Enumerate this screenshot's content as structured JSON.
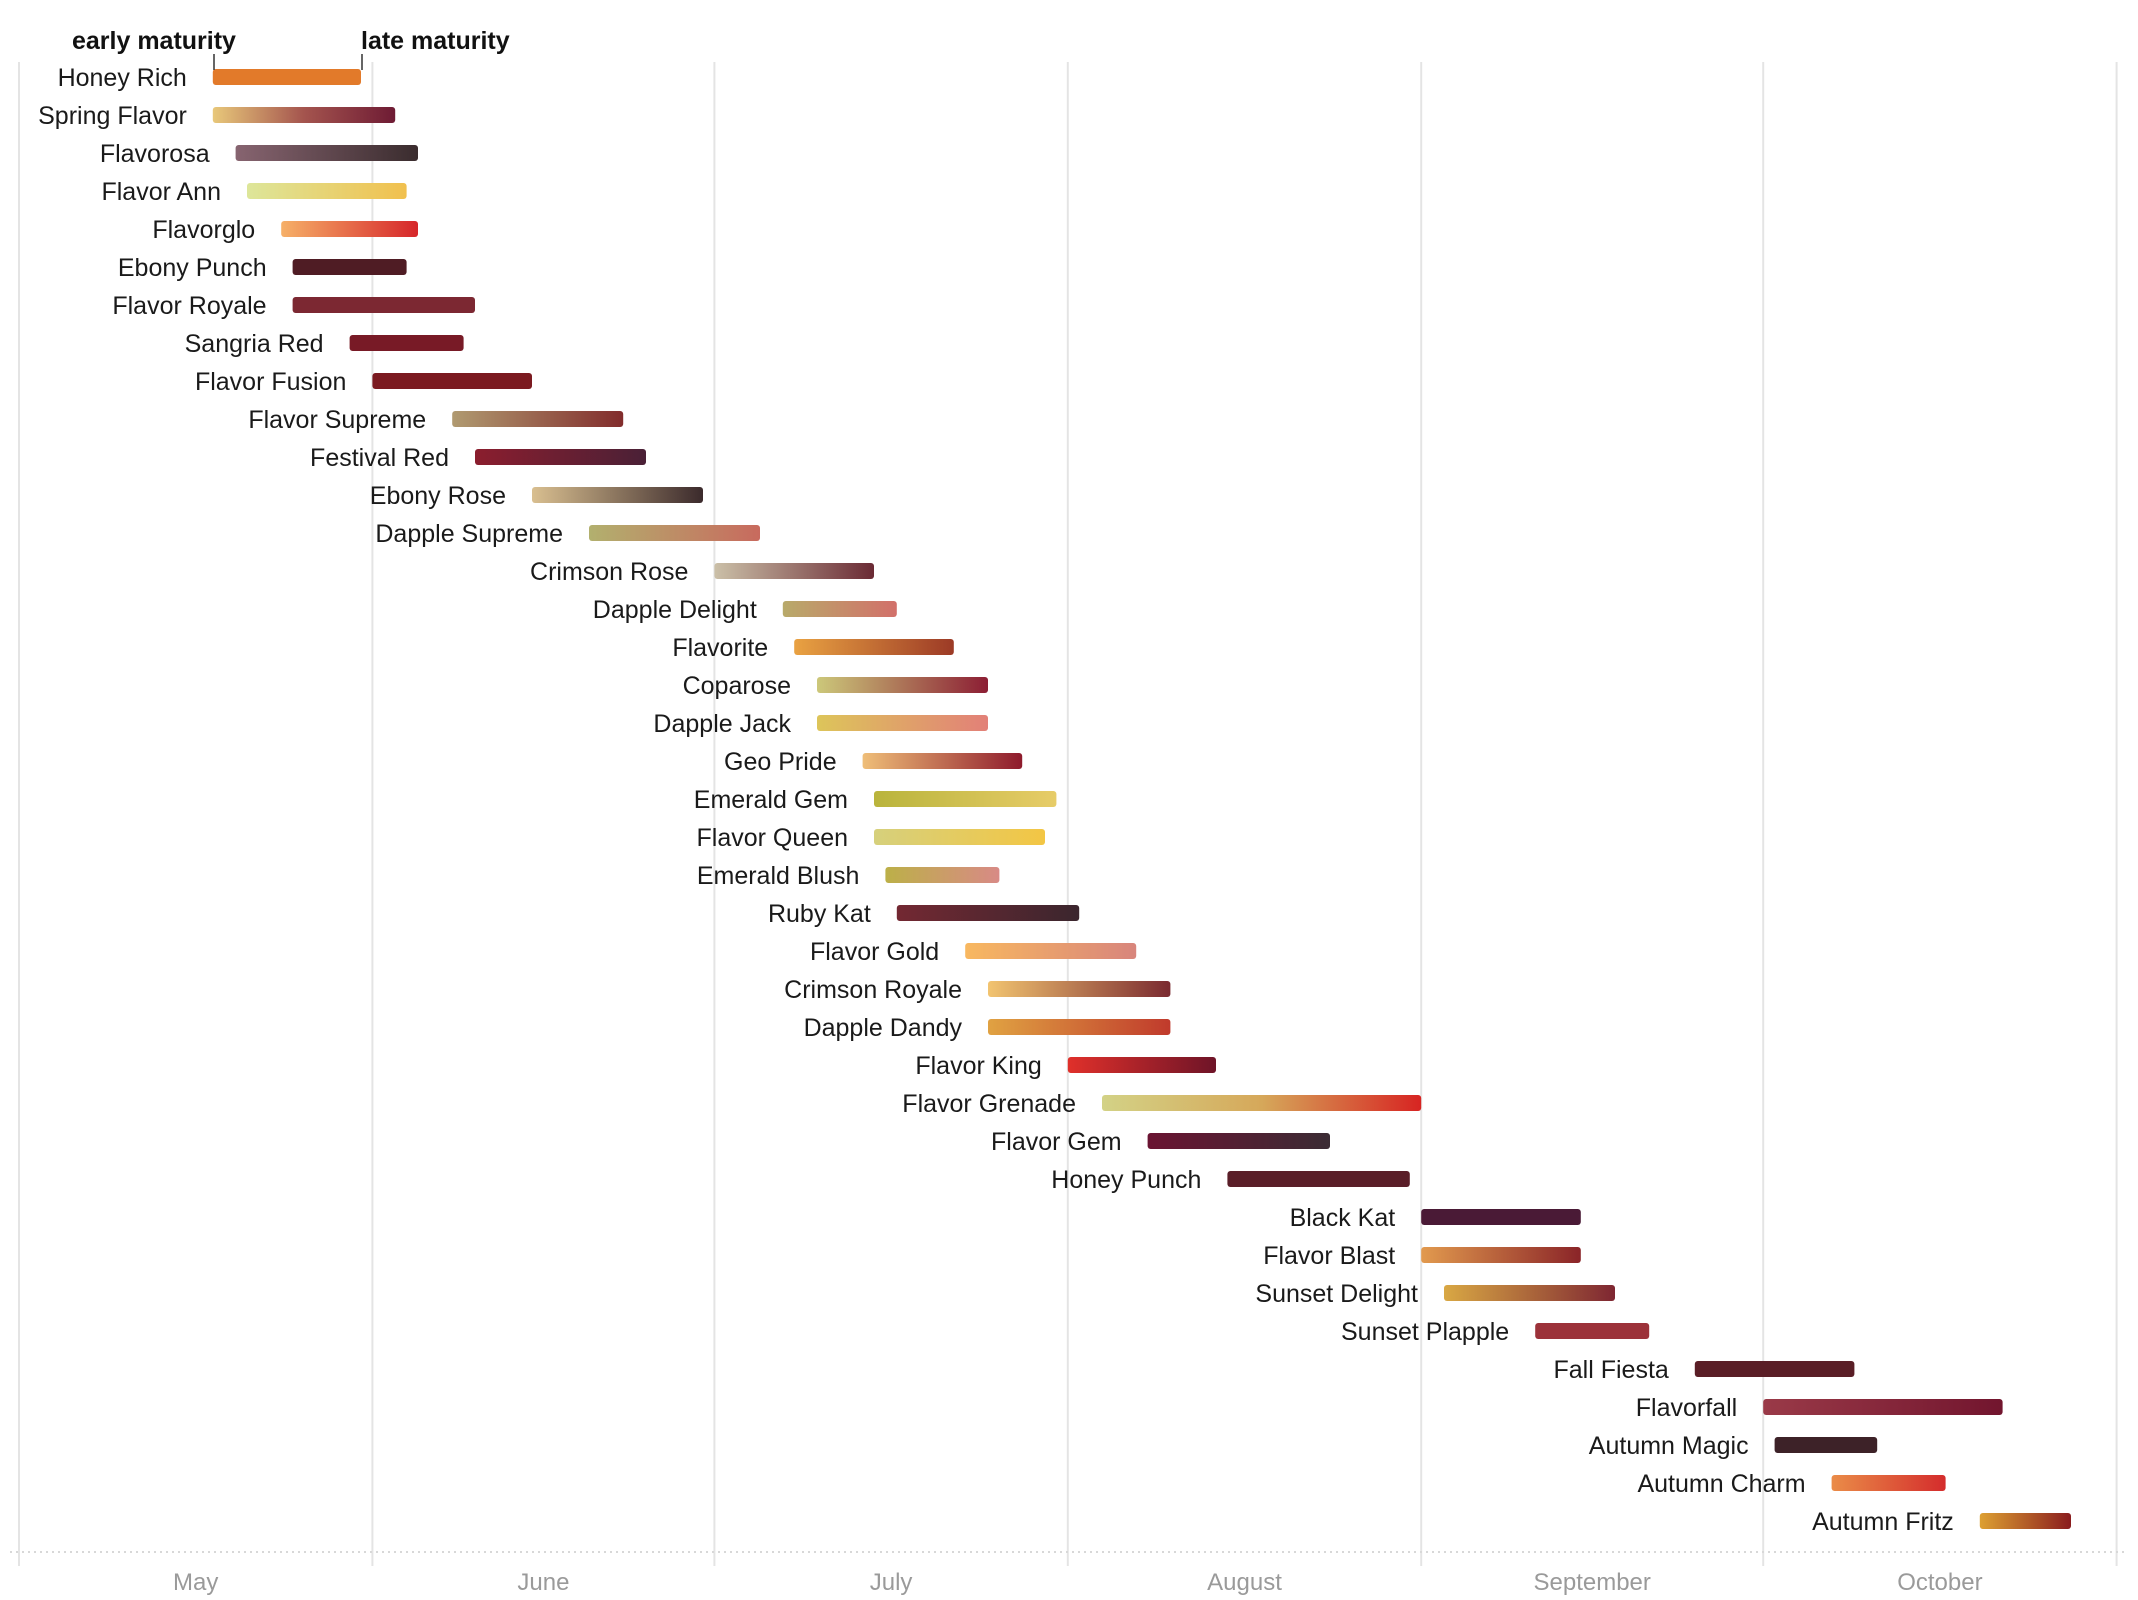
{
  "chart_data": {
    "type": "range-bar",
    "title": "",
    "xlabel": "",
    "ylabel": "",
    "x_axis": {
      "tick_labels": [
        "May",
        "June",
        "July",
        "August",
        "September",
        "October"
      ],
      "tick_days": [
        0,
        31,
        61,
        92,
        123,
        153
      ],
      "month_lengths": [
        31,
        30,
        31,
        31,
        30,
        31
      ],
      "range_days": [
        0,
        184
      ],
      "grid": true
    },
    "legend": {
      "start_label": "early maturity",
      "end_label": "late maturity",
      "placement": "top-left"
    },
    "series": [
      {
        "name": "Honey Rich",
        "start": 17,
        "end": 30,
        "colors": [
          "#e27a2a",
          "#e27a2a"
        ]
      },
      {
        "name": "Spring Flavor",
        "start": 17,
        "end": 33,
        "colors": [
          "#e8c87a",
          "#a4544e",
          "#6e1b34"
        ]
      },
      {
        "name": "Flavorosa",
        "start": 19,
        "end": 35,
        "colors": [
          "#876470",
          "#3a2c2e"
        ]
      },
      {
        "name": "Flavor Ann",
        "start": 20,
        "end": 34,
        "colors": [
          "#dde69a",
          "#f1c04e"
        ]
      },
      {
        "name": "Flavorglo",
        "start": 23,
        "end": 35,
        "colors": [
          "#f6b068",
          "#d6262a"
        ]
      },
      {
        "name": "Ebony Punch",
        "start": 24,
        "end": 34,
        "colors": [
          "#4f1c24",
          "#4f1c24"
        ]
      },
      {
        "name": "Flavor Royale",
        "start": 24,
        "end": 40,
        "colors": [
          "#7c2832",
          "#7c2832"
        ]
      },
      {
        "name": "Sangria Red",
        "start": 29,
        "end": 39,
        "colors": [
          "#781a26",
          "#781a26"
        ]
      },
      {
        "name": "Flavor Fusion",
        "start": 31,
        "end": 45,
        "colors": [
          "#7b1a20",
          "#7b1a20"
        ]
      },
      {
        "name": "Flavor Supreme",
        "start": 38,
        "end": 53,
        "colors": [
          "#b09a70",
          "#822c2c"
        ]
      },
      {
        "name": "Festival Red",
        "start": 40,
        "end": 55,
        "colors": [
          "#8b1e2e",
          "#4a2036"
        ]
      },
      {
        "name": "Ebony Rose",
        "start": 45,
        "end": 60,
        "colors": [
          "#d9bf90",
          "#3b2a2c"
        ]
      },
      {
        "name": "Dapple Supreme",
        "start": 50,
        "end": 65,
        "colors": [
          "#b2b06e",
          "#c86a5e"
        ]
      },
      {
        "name": "Crimson Rose",
        "start": 61,
        "end": 75,
        "colors": [
          "#cbc0a8",
          "#6a2a34"
        ]
      },
      {
        "name": "Dapple Delight",
        "start": 67,
        "end": 77,
        "colors": [
          "#b8aa6a",
          "#d2706a"
        ]
      },
      {
        "name": "Flavorite",
        "start": 68,
        "end": 82,
        "colors": [
          "#e9a242",
          "#9c3a26"
        ]
      },
      {
        "name": "Coparose",
        "start": 70,
        "end": 85,
        "colors": [
          "#ccc87a",
          "#8c1e34"
        ]
      },
      {
        "name": "Dapple Jack",
        "start": 70,
        "end": 85,
        "colors": [
          "#ddc55a",
          "#e28078"
        ]
      },
      {
        "name": "Geo Pride",
        "start": 74,
        "end": 88,
        "colors": [
          "#efbe78",
          "#8e1a2c"
        ]
      },
      {
        "name": "Emerald Gem",
        "start": 75,
        "end": 91,
        "colors": [
          "#b9b43c",
          "#e7cc68"
        ]
      },
      {
        "name": "Flavor Queen",
        "start": 75,
        "end": 90,
        "colors": [
          "#d6d07c",
          "#f3c644"
        ]
      },
      {
        "name": "Emerald Blush",
        "start": 76,
        "end": 86,
        "colors": [
          "#bcb048",
          "#d88a86"
        ]
      },
      {
        "name": "Ruby Kat",
        "start": 77,
        "end": 93,
        "colors": [
          "#732832",
          "#3b262e"
        ]
      },
      {
        "name": "Flavor Gold",
        "start": 83,
        "end": 98,
        "colors": [
          "#f8b860",
          "#d8857c"
        ]
      },
      {
        "name": "Crimson Royale",
        "start": 85,
        "end": 101,
        "colors": [
          "#f2c470",
          "#7a2a30"
        ]
      },
      {
        "name": "Dapple Dandy",
        "start": 85,
        "end": 101,
        "colors": [
          "#e0a242",
          "#c03a2c"
        ]
      },
      {
        "name": "Flavor King",
        "start": 92,
        "end": 105,
        "colors": [
          "#e0302a",
          "#6e1428"
        ]
      },
      {
        "name": "Flavor Grenade",
        "start": 95,
        "end": 123,
        "colors": [
          "#d3d286",
          "#d6a85a",
          "#d72422"
        ]
      },
      {
        "name": "Flavor Gem",
        "start": 99,
        "end": 115,
        "colors": [
          "#6a1432",
          "#3b2c34"
        ]
      },
      {
        "name": "Honey Punch",
        "start": 106,
        "end": 122,
        "colors": [
          "#5a1e28",
          "#5a1e28"
        ]
      },
      {
        "name": "Black Kat",
        "start": 123,
        "end": 137,
        "colors": [
          "#4a1a36",
          "#4a1a36"
        ]
      },
      {
        "name": "Flavor Blast",
        "start": 123,
        "end": 137,
        "colors": [
          "#e29a4e",
          "#8a2428"
        ]
      },
      {
        "name": "Sunset Delight",
        "start": 125,
        "end": 140,
        "colors": [
          "#d9a844",
          "#7e2632"
        ]
      },
      {
        "name": "Sunset Plapple",
        "start": 133,
        "end": 143,
        "colors": [
          "#9c323a",
          "#9c323a"
        ]
      },
      {
        "name": "Fall Fiesta",
        "start": 147,
        "end": 161,
        "colors": [
          "#5a1e26",
          "#5a1e26"
        ]
      },
      {
        "name": "Flavorfall",
        "start": 153,
        "end": 174,
        "colors": [
          "#9a3a48",
          "#72152e"
        ]
      },
      {
        "name": "Autumn Magic",
        "start": 154,
        "end": 163,
        "colors": [
          "#3d2228",
          "#3d2228"
        ]
      },
      {
        "name": "Autumn Charm",
        "start": 159,
        "end": 169,
        "colors": [
          "#ea8c48",
          "#d42c2c"
        ]
      },
      {
        "name": "Autumn Fritz",
        "start": 172,
        "end": 180,
        "colors": [
          "#dda032",
          "#8a1c1e"
        ]
      }
    ]
  }
}
